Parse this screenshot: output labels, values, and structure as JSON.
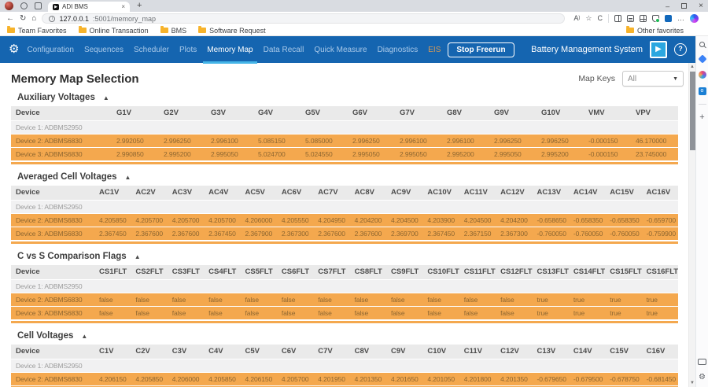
{
  "browser": {
    "tab": {
      "title": "ADI BMS"
    },
    "url": {
      "host": "127.0.0.1",
      "rest": ":5001/memory_map"
    },
    "bookmarks": [
      "Team Favorites",
      "Online Transaction",
      "BMS",
      "Software Request"
    ],
    "other_favorites_label": "Other favorites"
  },
  "nav": {
    "items": [
      "Configuration",
      "Sequences",
      "Scheduler",
      "Plots",
      "Memory Map",
      "Data Recall",
      "Quick Measure",
      "Diagnostics",
      "EIS"
    ],
    "active_item": "Memory Map",
    "stop_freerun_label": "Stop Freerun",
    "brand_label": "Battery Management System"
  },
  "page": {
    "title": "Memory Map Selection",
    "map_keys": {
      "label": "Map Keys",
      "selected": "All"
    }
  },
  "sections": [
    {
      "title": "Auxiliary Voltages",
      "columns": [
        "Device",
        "G1V",
        "G2V",
        "G3V",
        "G4V",
        "G5V",
        "G6V",
        "G7V",
        "G8V",
        "G9V",
        "G10V",
        "VMV",
        "VPV"
      ],
      "rows": [
        {
          "device": "Device 1: ADBMS2950",
          "values": []
        },
        {
          "device": "Device 2: ADBMS6830",
          "values": [
            "2.992050",
            "2.996250",
            "2.996100",
            "5.085150",
            "5.085000",
            "2.996250",
            "2.996100",
            "2.996100",
            "2.996250",
            "2.996250",
            "-0.000150",
            "46.170000"
          ]
        },
        {
          "device": "Device 3: ADBMS6830",
          "values": [
            "2.990850",
            "2.995200",
            "2.995050",
            "5.024700",
            "5.024550",
            "2.995050",
            "2.995050",
            "2.995200",
            "2.995050",
            "2.995200",
            "-0.000150",
            "23.745000"
          ]
        }
      ]
    },
    {
      "title": "Averaged Cell Voltages",
      "columns": [
        "Device",
        "AC1V",
        "AC2V",
        "AC3V",
        "AC4V",
        "AC5V",
        "AC6V",
        "AC7V",
        "AC8V",
        "AC9V",
        "AC10V",
        "AC11V",
        "AC12V",
        "AC13V",
        "AC14V",
        "AC15V",
        "AC16V"
      ],
      "rows": [
        {
          "device": "Device 1: ADBMS2950",
          "values": []
        },
        {
          "device": "Device 2: ADBMS6830",
          "values": [
            "4.205850",
            "4.205700",
            "4.205700",
            "4.205700",
            "4.206000",
            "4.205550",
            "4.204950",
            "4.204200",
            "4.204500",
            "4.203900",
            "4.204500",
            "4.204200",
            "-0.658650",
            "-0.658350",
            "-0.658350",
            "-0.659700"
          ]
        },
        {
          "device": "Device 3: ADBMS6830",
          "values": [
            "2.367450",
            "2.367600",
            "2.367600",
            "2.367450",
            "2.367900",
            "2.367300",
            "2.367600",
            "2.367600",
            "2.369700",
            "2.367450",
            "2.367150",
            "2.367300",
            "-0.760050",
            "-0.760050",
            "-0.760050",
            "-0.759900"
          ]
        }
      ]
    },
    {
      "title": "C vs S Comparison Flags",
      "columns": [
        "Device",
        "CS1FLT",
        "CS2FLT",
        "CS3FLT",
        "CS4FLT",
        "CS5FLT",
        "CS6FLT",
        "CS7FLT",
        "CS8FLT",
        "CS9FLT",
        "CS10FLT",
        "CS11FLT",
        "CS12FLT",
        "CS13FLT",
        "CS14FLT",
        "CS15FLT",
        "CS16FLT"
      ],
      "rows": [
        {
          "device": "Device 1: ADBMS2950",
          "values": []
        },
        {
          "device": "Device 2: ADBMS6830",
          "values": [
            "false",
            "false",
            "false",
            "false",
            "false",
            "false",
            "false",
            "false",
            "false",
            "false",
            "false",
            "false",
            "true",
            "true",
            "true",
            "true"
          ]
        },
        {
          "device": "Device 3: ADBMS6830",
          "values": [
            "false",
            "false",
            "false",
            "false",
            "false",
            "false",
            "false",
            "false",
            "false",
            "false",
            "false",
            "false",
            "true",
            "true",
            "true",
            "true"
          ]
        }
      ]
    },
    {
      "title": "Cell Voltages",
      "columns": [
        "Device",
        "C1V",
        "C2V",
        "C3V",
        "C4V",
        "C5V",
        "C6V",
        "C7V",
        "C8V",
        "C9V",
        "C10V",
        "C11V",
        "C12V",
        "C13V",
        "C14V",
        "C15V",
        "C16V"
      ],
      "rows": [
        {
          "device": "Device 1: ADBMS2950",
          "values": []
        },
        {
          "device": "Device 2: ADBMS6830",
          "values": [
            "4.206150",
            "4.205850",
            "4.206000",
            "4.205850",
            "4.206150",
            "4.205700",
            "4.201950",
            "4.201350",
            "4.201650",
            "4.201050",
            "4.201800",
            "4.201350",
            "-0.679650",
            "-0.679500",
            "-0.678750",
            "-0.681450"
          ]
        },
        {
          "device": "Device 3: ADBMS6830",
          "values": [
            "2.367600",
            "2.367750",
            "2.367600",
            "2.367600",
            "2.367900",
            "2.367300",
            "2.364900",
            "2.364450",
            "2.366250",
            "2.364900",
            "2.363550",
            "2.362700",
            "-0.806050",
            "-0.807000",
            "-0.806400",
            "-0.808050"
          ]
        }
      ]
    }
  ],
  "icons": {
    "collapse_up": "▲",
    "dropdown": "▼",
    "back": "←",
    "refresh": "↻",
    "home": "⌂",
    "favorite_star": "☆",
    "read_aloud": "A",
    "read_aloud_paren": ")",
    "copilot_c": "C",
    "more": "…",
    "help": "?",
    "settings_gear": "⚙",
    "new_tab": "+",
    "close_tab": "×",
    "window_minimize": "–",
    "window_close": "×",
    "play": "▶",
    "scroll_up": "▲",
    "scroll_down": "▼",
    "plus": "+",
    "info": "i",
    "outlook_o": "o",
    "tab_play": "▶"
  },
  "colors": {
    "nav_blue": "#1565b0",
    "active_tab_underline": "#45b5e8",
    "row_orange": "#f4a84e",
    "brand_logo_blue": "#2ba7e0"
  }
}
